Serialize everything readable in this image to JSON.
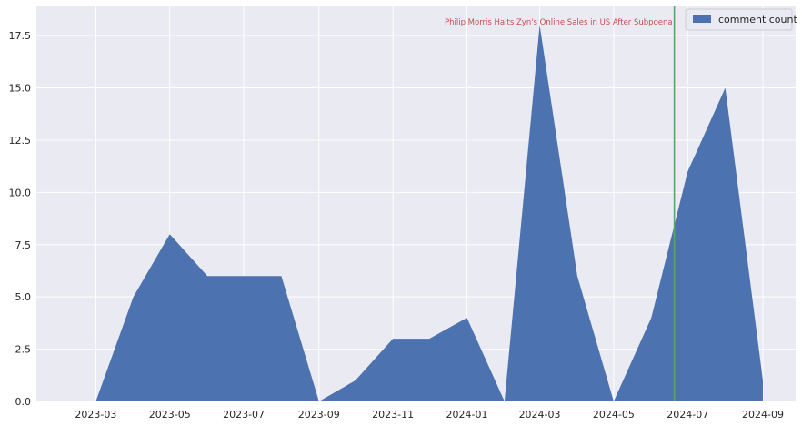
{
  "chart_data": {
    "type": "area",
    "series": [
      {
        "name": "comment count",
        "x": [
          "2023-03-01",
          "2023-04-01",
          "2023-05-01",
          "2023-06-01",
          "2023-07-01",
          "2023-08-01",
          "2023-09-01",
          "2023-10-01",
          "2023-11-01",
          "2023-12-01",
          "2024-01-01",
          "2024-02-01",
          "2024-03-01",
          "2024-04-01",
          "2024-05-01",
          "2024-06-01",
          "2024-07-01",
          "2024-08-01",
          "2024-09-01"
        ],
        "values": [
          0,
          5,
          8,
          6,
          6,
          6,
          0,
          1,
          3,
          3,
          4,
          0,
          18,
          6,
          0,
          4,
          11,
          15,
          1
        ]
      }
    ],
    "xlim": [
      "2023-01-11",
      "2024-09-28"
    ],
    "ylim": [
      0,
      18.9
    ],
    "xticks": [
      "2023-03",
      "2023-05",
      "2023-07",
      "2023-09",
      "2023-11",
      "2024-01",
      "2024-03",
      "2024-05",
      "2024-07",
      "2024-09"
    ],
    "yticks": [
      "0.0",
      "2.5",
      "5.0",
      "7.5",
      "10.0",
      "12.5",
      "15.0",
      "17.5"
    ],
    "annotation": {
      "text": "Philip Morris Halts Zyn's Online Sales in US After Subpoena",
      "date": "2024-06-20",
      "line_color": "#55a868",
      "text_color": "#c44e52"
    },
    "grid": true,
    "legend_position": "upper right",
    "colors": {
      "fill": "#4c72b0",
      "background": "#eaeaf2",
      "grid": "#ffffff"
    }
  }
}
